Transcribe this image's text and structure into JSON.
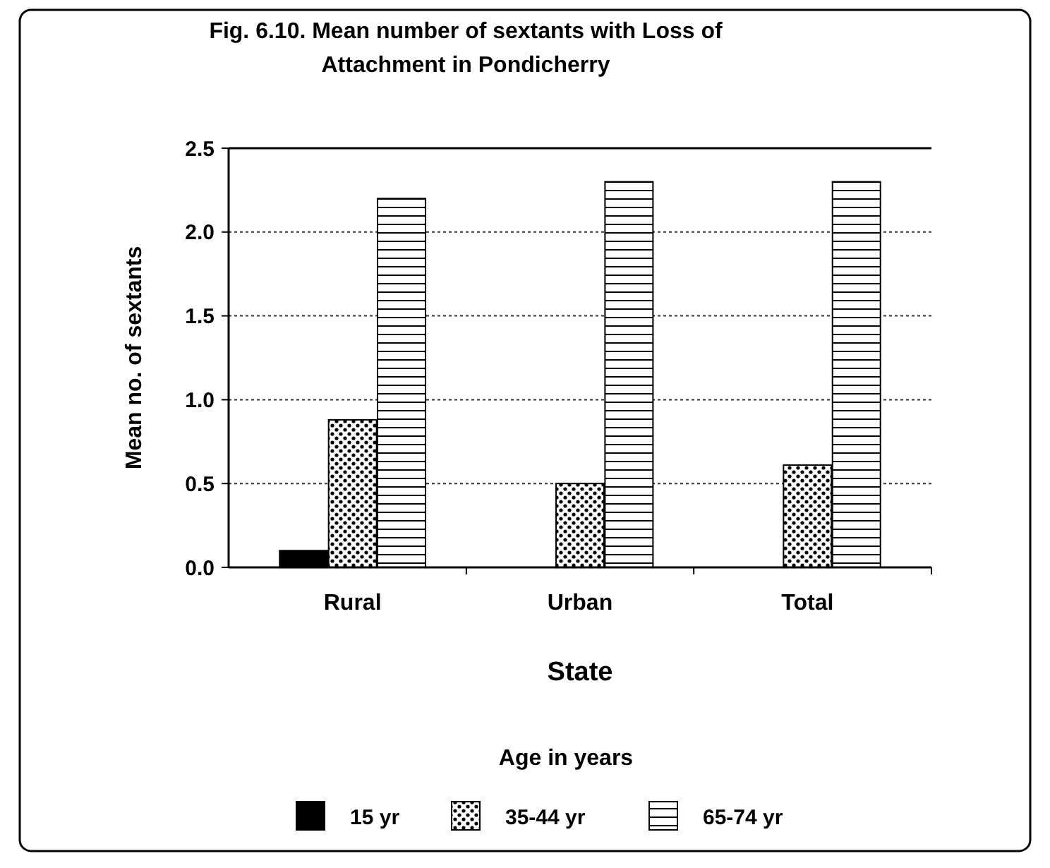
{
  "chart_data": {
    "type": "bar",
    "title": "Fig. 6.10. Mean number of sextants with Loss of Attachment in Pondicherry",
    "xlabel": "State",
    "ylabel": "Mean no. of sextants",
    "legend_title": "Age in years",
    "categories": [
      "Rural",
      "Urban",
      "Total"
    ],
    "series": [
      {
        "name": "15 yr",
        "color": "#000000",
        "values": [
          0.1,
          0,
          0
        ]
      },
      {
        "name": "35-44 yr",
        "color": "#000000",
        "values": [
          0.88,
          0.5,
          0.61
        ]
      },
      {
        "name": "65-74 yr",
        "color": "#000000",
        "values": [
          2.2,
          2.3,
          2.3
        ]
      }
    ],
    "ylim": [
      0,
      2.5
    ],
    "yticks": [
      {
        "value": 0,
        "label": "0.0"
      },
      {
        "value": 0.5,
        "label": "0.5"
      },
      {
        "value": 1,
        "label": "1.0"
      },
      {
        "value": 1.5,
        "label": "1.5"
      },
      {
        "value": 2,
        "label": "2.0"
      },
      {
        "value": 2.5,
        "label": "2.5"
      }
    ],
    "grid": "y",
    "legend": "bottom"
  }
}
